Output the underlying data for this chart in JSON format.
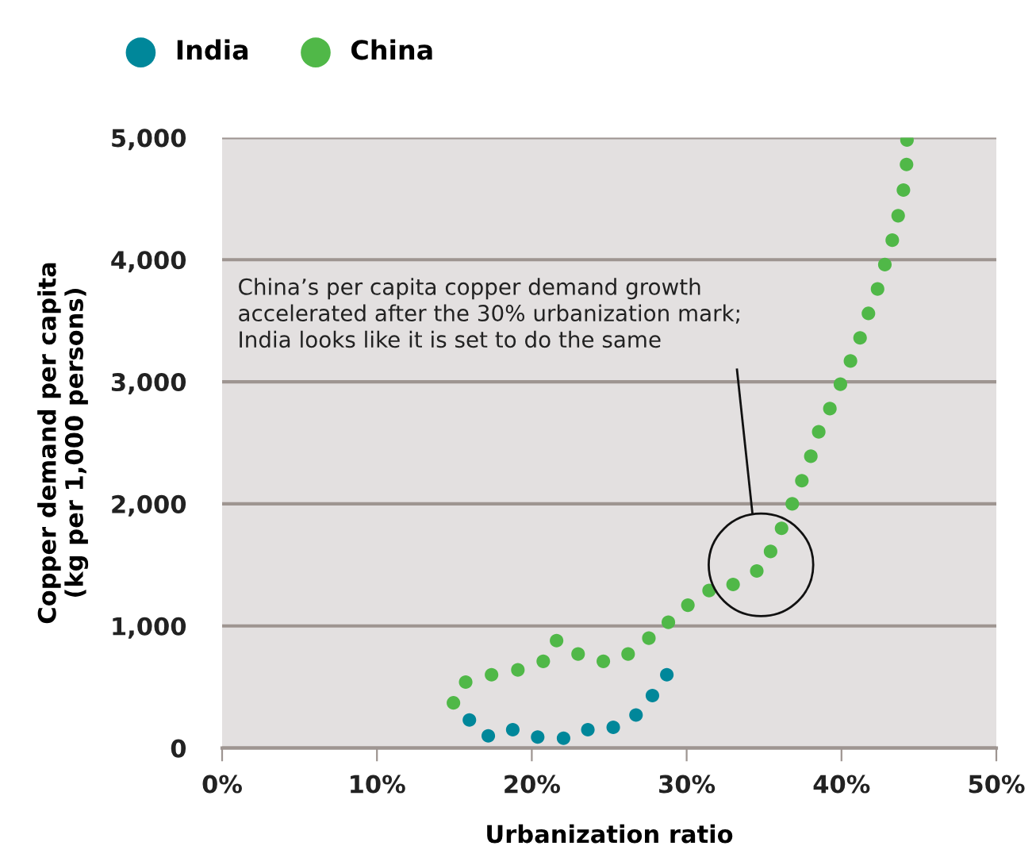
{
  "chart_data": {
    "type": "scatter",
    "xlabel": "Urbanization ratio",
    "ylabel": "Copper demand per capita\n(kg per 1,000 persons)",
    "series": [
      {
        "name": "India",
        "color": "#00879a",
        "x": [
          15.97,
          17.19,
          18.77,
          20.38,
          22.05,
          23.62,
          25.26,
          26.73,
          27.79,
          28.72
        ],
        "values": [
          230,
          100,
          150,
          90,
          80,
          150,
          170,
          270,
          430,
          600
        ]
      },
      {
        "name": "China",
        "color": "#50b848",
        "x": [
          14.94,
          15.73,
          17.4,
          19.1,
          20.74,
          21.6,
          22.99,
          24.62,
          26.22,
          27.56,
          28.82,
          30.08,
          31.45,
          33.0,
          34.53,
          35.42,
          36.13,
          36.82,
          37.44,
          38.02,
          38.53,
          39.25,
          39.93,
          40.58,
          41.2,
          41.74,
          42.33,
          42.8,
          43.28,
          43.66,
          44.0,
          44.2,
          44.23
        ],
        "values": [
          370,
          540,
          600,
          640,
          710,
          880,
          770,
          710,
          770,
          900,
          1030,
          1170,
          1290,
          1340,
          1450,
          1610,
          1800,
          2000,
          2190,
          2390,
          2590,
          2780,
          2980,
          3170,
          3360,
          3560,
          3760,
          3960,
          4160,
          4360,
          4570,
          4780,
          4980
        ]
      }
    ],
    "xlim": [
      0,
      50
    ],
    "xticks": [
      {
        "value": 0,
        "label": "0%"
      },
      {
        "value": 10,
        "label": "10%"
      },
      {
        "value": 20,
        "label": "20%"
      },
      {
        "value": 30,
        "label": "30%"
      },
      {
        "value": 40,
        "label": "40%"
      },
      {
        "value": 50,
        "label": "50%"
      }
    ],
    "ylim": [
      0,
      5000
    ],
    "yticks": [
      0,
      {
        "value": 1000,
        "label": "1,000"
      },
      {
        "value": 2000,
        "label": "2,000"
      },
      {
        "value": 3000,
        "label": "3,000"
      },
      {
        "value": 4000,
        "label": "4,000"
      },
      {
        "value": 5000,
        "label": "5,000"
      }
    ],
    "grid": "y",
    "legend": "top left",
    "marker": "circle",
    "annotations": [
      "China’s per capita copper demand growth\naccelerated after the 30% urbanization mark;\nIndia looks like it is set to do the same"
    ]
  }
}
